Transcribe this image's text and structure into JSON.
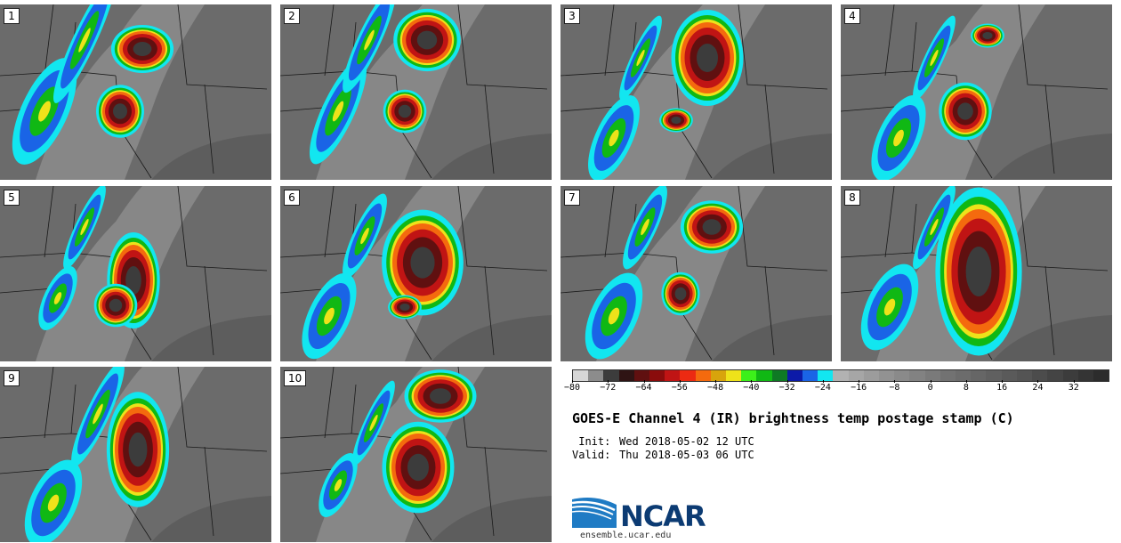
{
  "panels": [
    {
      "number": "1"
    },
    {
      "number": "2"
    },
    {
      "number": "3"
    },
    {
      "number": "4"
    },
    {
      "number": "5"
    },
    {
      "number": "6"
    },
    {
      "number": "7"
    },
    {
      "number": "8"
    },
    {
      "number": "9"
    },
    {
      "number": "10"
    }
  ],
  "colorbar": {
    "colors": [
      "#d6d6d6",
      "#8c8c8c",
      "#3c3c3c",
      "#2f1414",
      "#601010",
      "#8a0c0c",
      "#c01414",
      "#ec2a12",
      "#f46a0e",
      "#d8a40c",
      "#eee21a",
      "#3cf01a",
      "#10b814",
      "#0e7a24",
      "#0c1aa8",
      "#1a64e6",
      "#12e6f0",
      "#b2b2b2",
      "#a6a6a6",
      "#9c9c9c",
      "#929292",
      "#8a8a8a",
      "#828282",
      "#7a7a7a",
      "#727272",
      "#6c6c6c",
      "#666666",
      "#606060",
      "#5a5a5a",
      "#545454",
      "#4c4c4c",
      "#444444",
      "#3c3c3c",
      "#343434",
      "#2c2c2c"
    ],
    "ticks": [
      "−80",
      "−72",
      "−64",
      "−56",
      "−48",
      "−40",
      "−32",
      "−24",
      "−16",
      "−8",
      "0",
      "8",
      "16",
      "24",
      "32"
    ],
    "range": [
      -80,
      40
    ]
  },
  "title": "GOES-E Channel 4 (IR) brightness temp postage stamp (C)",
  "init_label": " Init:",
  "init_value": "Wed 2018-05-02 12 UTC",
  "valid_label": "Valid:",
  "valid_value": "Thu 2018-05-03 06 UTC",
  "logo": {
    "text": "NCAR",
    "url": "ensemble.ucar.edu",
    "color": "#0c3b73"
  }
}
